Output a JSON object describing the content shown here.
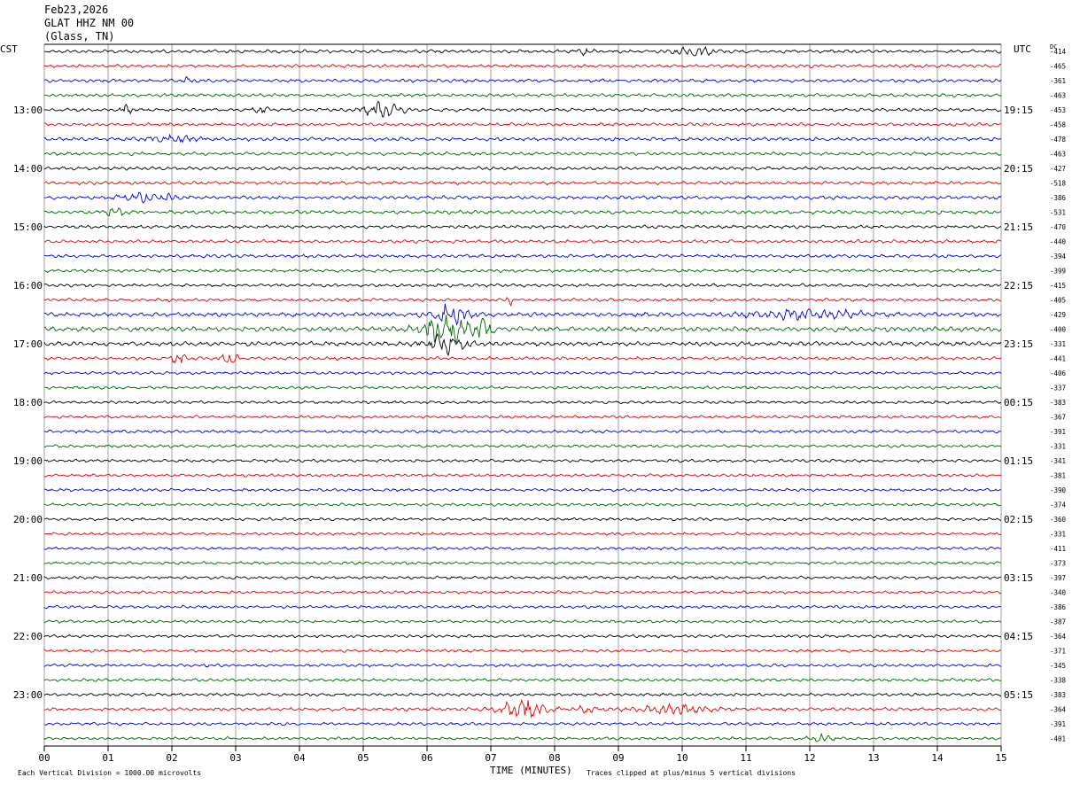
{
  "header": {
    "date": "Feb23,2026",
    "station": "GLAT HHZ NM 00",
    "location": "(Glass, TN)"
  },
  "left_zone_label": "CST",
  "right_zone_label": "UTC",
  "dc_label": "DC",
  "footer": {
    "scale_note": "Each Vertical Division = 1000.00 microvolts",
    "axis_title": "TIME (MINUTES)",
    "clip_note": "Traces clipped at plus/minus 5 vertical divisions"
  },
  "colors": [
    "#000000",
    "#e60000",
    "#0000e6",
    "#006600"
  ],
  "chart_data": {
    "type": "helicorder",
    "title": "GLAT HHZ NM 00 (Glass, TN) Feb23,2026",
    "xlabel": "TIME (MINUTES)",
    "x_ticks": [
      "00",
      "01",
      "02",
      "03",
      "04",
      "05",
      "06",
      "07",
      "08",
      "09",
      "10",
      "11",
      "12",
      "13",
      "14",
      "15"
    ],
    "xlim": [
      0,
      15
    ],
    "rows_per_hour": 4,
    "left_hour_labels": [
      {
        "row": 4,
        "label": "13:00"
      },
      {
        "row": 8,
        "label": "14:00"
      },
      {
        "row": 12,
        "label": "15:00"
      },
      {
        "row": 16,
        "label": "16:00"
      },
      {
        "row": 20,
        "label": "17:00"
      },
      {
        "row": 24,
        "label": "18:00"
      },
      {
        "row": 28,
        "label": "19:00"
      },
      {
        "row": 32,
        "label": "20:00"
      },
      {
        "row": 36,
        "label": "21:00"
      },
      {
        "row": 40,
        "label": "22:00"
      },
      {
        "row": 44,
        "label": "23:00"
      }
    ],
    "right_hour_labels": [
      {
        "row": 4,
        "label": "19:15"
      },
      {
        "row": 8,
        "label": "20:15"
      },
      {
        "row": 12,
        "label": "21:15"
      },
      {
        "row": 16,
        "label": "22:15"
      },
      {
        "row": 20,
        "label": "23:15"
      },
      {
        "row": 24,
        "label": "00:15"
      },
      {
        "row": 28,
        "label": "01:15"
      },
      {
        "row": 32,
        "label": "02:15"
      },
      {
        "row": 36,
        "label": "03:15"
      },
      {
        "row": 40,
        "label": "04:15"
      },
      {
        "row": 44,
        "label": "05:15"
      }
    ],
    "dc_offsets": [
      "-414",
      "-465",
      "-361",
      "-463",
      "-453",
      "-458",
      "-478",
      "-463",
      "-427",
      "-518",
      "-386",
      "-531",
      "-470",
      "-440",
      "-394",
      "-399",
      "-415",
      "-405",
      "-429",
      "-400",
      "-331",
      "-441",
      "-406",
      "-337",
      "-383",
      "-367",
      "-391",
      "-331",
      "-341",
      "-381",
      "-390",
      "-374",
      "-360",
      "-331",
      "-411",
      "-373",
      "-397",
      "-340",
      "-386",
      "-387",
      "-364",
      "-371",
      "-345",
      "-338",
      "-383",
      "-364",
      "-391",
      "-401"
    ],
    "trace_amplitude": [
      1.0,
      1.0,
      1.0,
      1.0,
      1.0,
      1.0,
      1.1,
      1.0,
      1.0,
      1.0,
      1.1,
      1.1,
      1.0,
      1.0,
      1.0,
      1.0,
      1.0,
      1.0,
      1.3,
      1.5,
      1.3,
      1.0,
      0.9,
      0.9,
      0.9,
      0.9,
      0.9,
      0.9,
      0.9,
      0.9,
      0.9,
      0.9,
      0.9,
      0.9,
      0.9,
      0.9,
      0.9,
      0.9,
      0.9,
      0.9,
      0.9,
      0.9,
      0.9,
      0.9,
      0.9,
      1.0,
      0.9,
      0.9
    ],
    "events": [
      {
        "row": 0,
        "minute": 10.2,
        "amp": 5,
        "width": 0.25
      },
      {
        "row": 0,
        "minute": 8.5,
        "amp": 3,
        "width": 0.1
      },
      {
        "row": 2,
        "minute": 2.3,
        "amp": 3,
        "width": 0.1
      },
      {
        "row": 4,
        "minute": 5.3,
        "amp": 7,
        "width": 0.3
      },
      {
        "row": 4,
        "minute": 1.3,
        "amp": 4,
        "width": 0.1
      },
      {
        "row": 4,
        "minute": 3.4,
        "amp": 3,
        "width": 0.1
      },
      {
        "row": 6,
        "minute": 2.0,
        "amp": 3,
        "width": 0.4
      },
      {
        "row": 10,
        "minute": 1.5,
        "amp": 4,
        "width": 0.3
      },
      {
        "row": 10,
        "minute": 1.95,
        "amp": 3,
        "width": 0.1
      },
      {
        "row": 11,
        "minute": 1.1,
        "amp": 4,
        "width": 0.2
      },
      {
        "row": 17,
        "minute": 7.3,
        "amp": 4,
        "width": 0.05
      },
      {
        "row": 18,
        "minute": 6.4,
        "amp": 9,
        "width": 0.3
      },
      {
        "row": 18,
        "minute": 12.0,
        "amp": 4,
        "width": 0.9
      },
      {
        "row": 19,
        "minute": 6.3,
        "amp": 14,
        "width": 0.4
      },
      {
        "row": 19,
        "minute": 6.9,
        "amp": 8,
        "width": 0.15
      },
      {
        "row": 20,
        "minute": 6.3,
        "amp": 9,
        "width": 0.3
      },
      {
        "row": 21,
        "minute": 2.15,
        "amp": 6,
        "width": 0.15
      },
      {
        "row": 21,
        "minute": 2.9,
        "amp": 8,
        "width": 0.1
      },
      {
        "row": 45,
        "minute": 7.5,
        "amp": 11,
        "width": 0.35
      },
      {
        "row": 45,
        "minute": 9.9,
        "amp": 5,
        "width": 0.55
      },
      {
        "row": 45,
        "minute": 8.5,
        "amp": 3,
        "width": 0.2
      },
      {
        "row": 47,
        "minute": 12.2,
        "amp": 3,
        "width": 0.2
      }
    ]
  }
}
